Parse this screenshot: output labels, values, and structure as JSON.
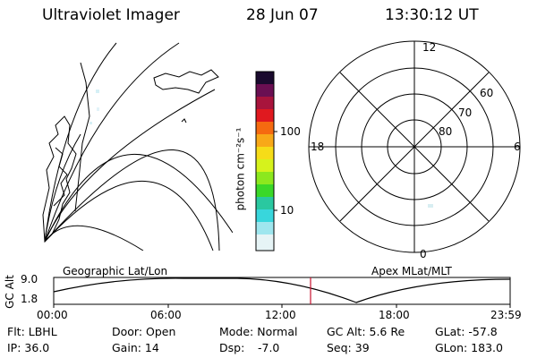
{
  "header": {
    "title": "Ultraviolet Imager",
    "date": "28 Jun 07",
    "time": "13:30:12 UT"
  },
  "colorbar": {
    "unit_label": "photon cm⁻²s⁻¹",
    "tick_100": "100",
    "tick_10": "10"
  },
  "polar": {
    "mlt_top": "12",
    "mlt_left": "18",
    "mlt_right": "6",
    "mlt_bottom": "0",
    "lat_60": "60",
    "lat_70": "70",
    "lat_80": "80"
  },
  "timeline": {
    "left_label": "Geographic Lat/Lon",
    "right_label": "Apex MLat/MLT",
    "axis_label": "GC Alt",
    "y_max": "9.0",
    "y_min": "1.8",
    "ticks": [
      "00:00",
      "06:00",
      "12:00",
      "18:00",
      "23:59"
    ],
    "marker_time": "13:30"
  },
  "info": {
    "flt": "Flt: LBHL",
    "ip": "IP: 36.0",
    "door": "Door: Open",
    "gain": "Gain: 14",
    "mode": "Mode: Normal",
    "dsp_label": "Dsp:",
    "dsp_value": "-7.0",
    "gcalt": "GC Alt: 5.6 Re",
    "seq": "Seq: 39",
    "glat": "GLat: -57.8",
    "glon": "GLon: 183.0"
  }
}
